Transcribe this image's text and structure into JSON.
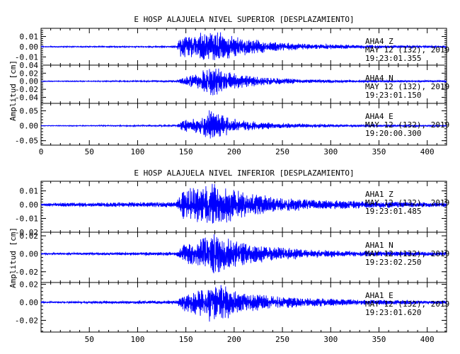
{
  "chart_data": [
    {
      "type": "line",
      "title": "E HOSP ALAJUELA NIVEL SUPERIOR [DESPLAZAMIENTO]",
      "ylabel": "Amplitud [cm]",
      "xlabel": "",
      "xlim": [
        0,
        420
      ],
      "x_ticks": [
        0,
        50,
        100,
        150,
        200,
        250,
        300,
        350,
        400
      ],
      "series_color": "#0000ff",
      "grid": false,
      "traces": [
        {
          "ylim": [
            -0.018,
            0.018
          ],
          "y_ticks": [
            0.01,
            0.0,
            -0.01
          ],
          "y_tick_labels": [
            "0.01",
            "0.00",
            "-0.01"
          ],
          "station": "AHA4",
          "component": "Z",
          "date": "MAY 12 (132), 2019",
          "time": "19:23:01.355",
          "envelope": [
            [
              0,
              0.0005
            ],
            [
              140,
              0.0008
            ],
            [
              145,
              0.012
            ],
            [
              160,
              0.013
            ],
            [
              170,
              0.016
            ],
            [
              185,
              0.015
            ],
            [
              200,
              0.011
            ],
            [
              215,
              0.008
            ],
            [
              240,
              0.005
            ],
            [
              270,
              0.003
            ],
            [
              320,
              0.002
            ],
            [
              360,
              0.0015
            ],
            [
              420,
              0.001
            ]
          ]
        },
        {
          "ylim": [
            -0.055,
            0.04
          ],
          "y_ticks": [
            0.04,
            0.02,
            0.0,
            -0.02,
            -0.04
          ],
          "y_tick_labels": [
            "0.04",
            "0.02",
            "0.00",
            "-0.02",
            "-0.04"
          ],
          "station": "AHA4",
          "component": "N",
          "date": "MAY 12 (132), 2019",
          "time": "19:23:01.150",
          "envelope": [
            [
              0,
              0.001
            ],
            [
              140,
              0.002
            ],
            [
              148,
              0.012
            ],
            [
              165,
              0.02
            ],
            [
              175,
              0.045
            ],
            [
              185,
              0.03
            ],
            [
              200,
              0.02
            ],
            [
              230,
              0.01
            ],
            [
              270,
              0.005
            ],
            [
              320,
              0.003
            ],
            [
              420,
              0.002
            ]
          ]
        },
        {
          "ylim": [
            -0.065,
            0.075
          ],
          "y_ticks": [
            0.05,
            0.0,
            -0.05
          ],
          "y_tick_labels": [
            "0.05",
            "0.00",
            "-0.05"
          ],
          "station": "AHA4",
          "component": "E",
          "date": "MAY 12 (132), 2019",
          "time": "19:20:00.300",
          "envelope": [
            [
              0,
              0.001
            ],
            [
              140,
              0.003
            ],
            [
              148,
              0.02
            ],
            [
              165,
              0.03
            ],
            [
              175,
              0.055
            ],
            [
              190,
              0.035
            ],
            [
              205,
              0.02
            ],
            [
              240,
              0.01
            ],
            [
              280,
              0.006
            ],
            [
              330,
              0.004
            ],
            [
              420,
              0.002
            ]
          ]
        }
      ]
    },
    {
      "type": "line",
      "title": "E HOSP ALAJUELA NIVEL INFERIOR [DESPLAZAMIENTO]",
      "ylabel": "Amplitud [cm]",
      "xlabel": "",
      "xlim": [
        0,
        420
      ],
      "x_ticks": [
        50,
        100,
        150,
        200,
        250,
        300,
        350,
        400
      ],
      "series_color": "#0000ff",
      "grid": false,
      "traces": [
        {
          "ylim": [
            -0.02,
            0.017
          ],
          "y_ticks": [
            0.01,
            0.0,
            -0.01,
            -0.02
          ],
          "y_tick_labels": [
            "0.01",
            "0.00",
            "-0.01",
            "-0.02"
          ],
          "station": "AHA1",
          "component": "Z",
          "date": "MAY 12 (132), 2019",
          "time": "19:23:01.485",
          "envelope": [
            [
              0,
              0.0008
            ],
            [
              20,
              0.0015
            ],
            [
              140,
              0.002
            ],
            [
              148,
              0.012
            ],
            [
              165,
              0.014
            ],
            [
              175,
              0.016
            ],
            [
              190,
              0.014
            ],
            [
              205,
              0.01
            ],
            [
              240,
              0.006
            ],
            [
              280,
              0.004
            ],
            [
              320,
              0.003
            ],
            [
              420,
              0.0015
            ]
          ]
        },
        {
          "ylim": [
            -0.032,
            0.024
          ],
          "y_ticks": [
            0.02,
            0.0,
            -0.02
          ],
          "y_tick_labels": [
            "0.02",
            "0.00",
            "-0.02"
          ],
          "station": "AHA1",
          "component": "N",
          "date": "MAY 12 (132), 2019",
          "time": "19:23:02.250",
          "envelope": [
            [
              0,
              0.001
            ],
            [
              140,
              0.002
            ],
            [
              148,
              0.012
            ],
            [
              165,
              0.018
            ],
            [
              178,
              0.024
            ],
            [
              190,
              0.02
            ],
            [
              205,
              0.014
            ],
            [
              240,
              0.008
            ],
            [
              280,
              0.005
            ],
            [
              330,
              0.003
            ],
            [
              420,
              0.002
            ]
          ]
        },
        {
          "ylim": [
            -0.033,
            0.022
          ],
          "y_ticks": [
            0.02,
            0.0,
            -0.02
          ],
          "y_tick_labels": [
            "0.02",
            "0.00",
            "-0.02"
          ],
          "station": "AHA1",
          "component": "E",
          "date": "MAY 12 (132), 2019",
          "time": "19:23:01.620",
          "envelope": [
            [
              0,
              0.0008
            ],
            [
              140,
              0.002
            ],
            [
              148,
              0.01
            ],
            [
              165,
              0.016
            ],
            [
              178,
              0.025
            ],
            [
              190,
              0.02
            ],
            [
              205,
              0.012
            ],
            [
              240,
              0.007
            ],
            [
              280,
              0.005
            ],
            [
              330,
              0.003
            ],
            [
              420,
              0.002
            ]
          ]
        }
      ]
    }
  ]
}
